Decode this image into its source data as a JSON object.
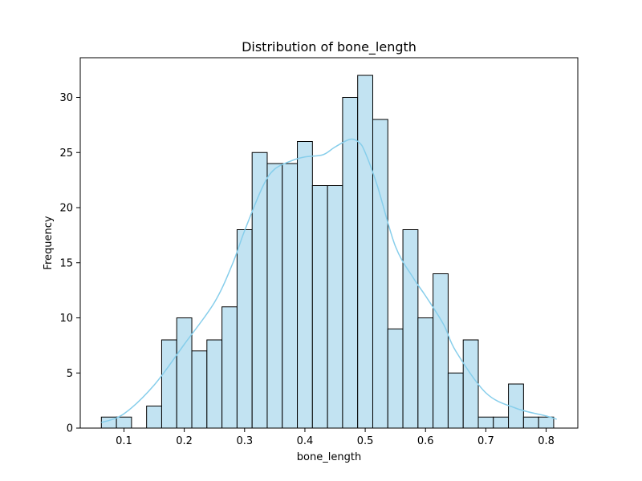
{
  "chart_data": {
    "type": "bar",
    "title": "Distribution of bone_length",
    "xlabel": "bone_length",
    "ylabel": "Frequency",
    "xlim": [
      0.0275,
      0.8525
    ],
    "ylim": [
      0,
      33.6
    ],
    "x_ticks": [
      0.1,
      0.2,
      0.3,
      0.4,
      0.5,
      0.6,
      0.7,
      0.8
    ],
    "x_tick_labels": [
      "0.1",
      "0.2",
      "0.3",
      "0.4",
      "0.5",
      "0.6",
      "0.7",
      "0.8"
    ],
    "y_ticks": [
      0,
      5,
      10,
      15,
      20,
      25,
      30
    ],
    "y_tick_labels": [
      "0",
      "5",
      "10",
      "15",
      "20",
      "25",
      "30"
    ],
    "grid": false,
    "legend": "none",
    "bin_start": 0.0625,
    "bin_width": 0.025,
    "counts": [
      1,
      1,
      0,
      2,
      8,
      10,
      7,
      8,
      11,
      18,
      25,
      24,
      24,
      26,
      22,
      22,
      30,
      32,
      28,
      9,
      18,
      10,
      14,
      5,
      8,
      1,
      1,
      4,
      1,
      1
    ],
    "kde": {
      "x": [
        0.0625,
        0.1,
        0.15,
        0.2,
        0.25,
        0.28,
        0.3,
        0.33,
        0.35,
        0.38,
        0.4,
        0.43,
        0.45,
        0.475,
        0.49,
        0.5,
        0.52,
        0.55,
        0.58,
        0.6,
        0.63,
        0.65,
        0.7,
        0.75,
        0.8,
        0.8175
      ],
      "y": [
        0.5,
        1.3,
        3.9,
        7.6,
        11.4,
        14.9,
        17.9,
        21.9,
        23.5,
        24.3,
        24.6,
        24.8,
        25.5,
        26.2,
        25.9,
        25.0,
        22.0,
        16.5,
        13.6,
        12.0,
        9.4,
        7.0,
        3.2,
        1.8,
        1.1,
        0.8
      ]
    },
    "colors": {
      "bar_fill": "#c2e3f2",
      "bar_edge": "#000000",
      "kde_line": "#87ceeb"
    }
  }
}
